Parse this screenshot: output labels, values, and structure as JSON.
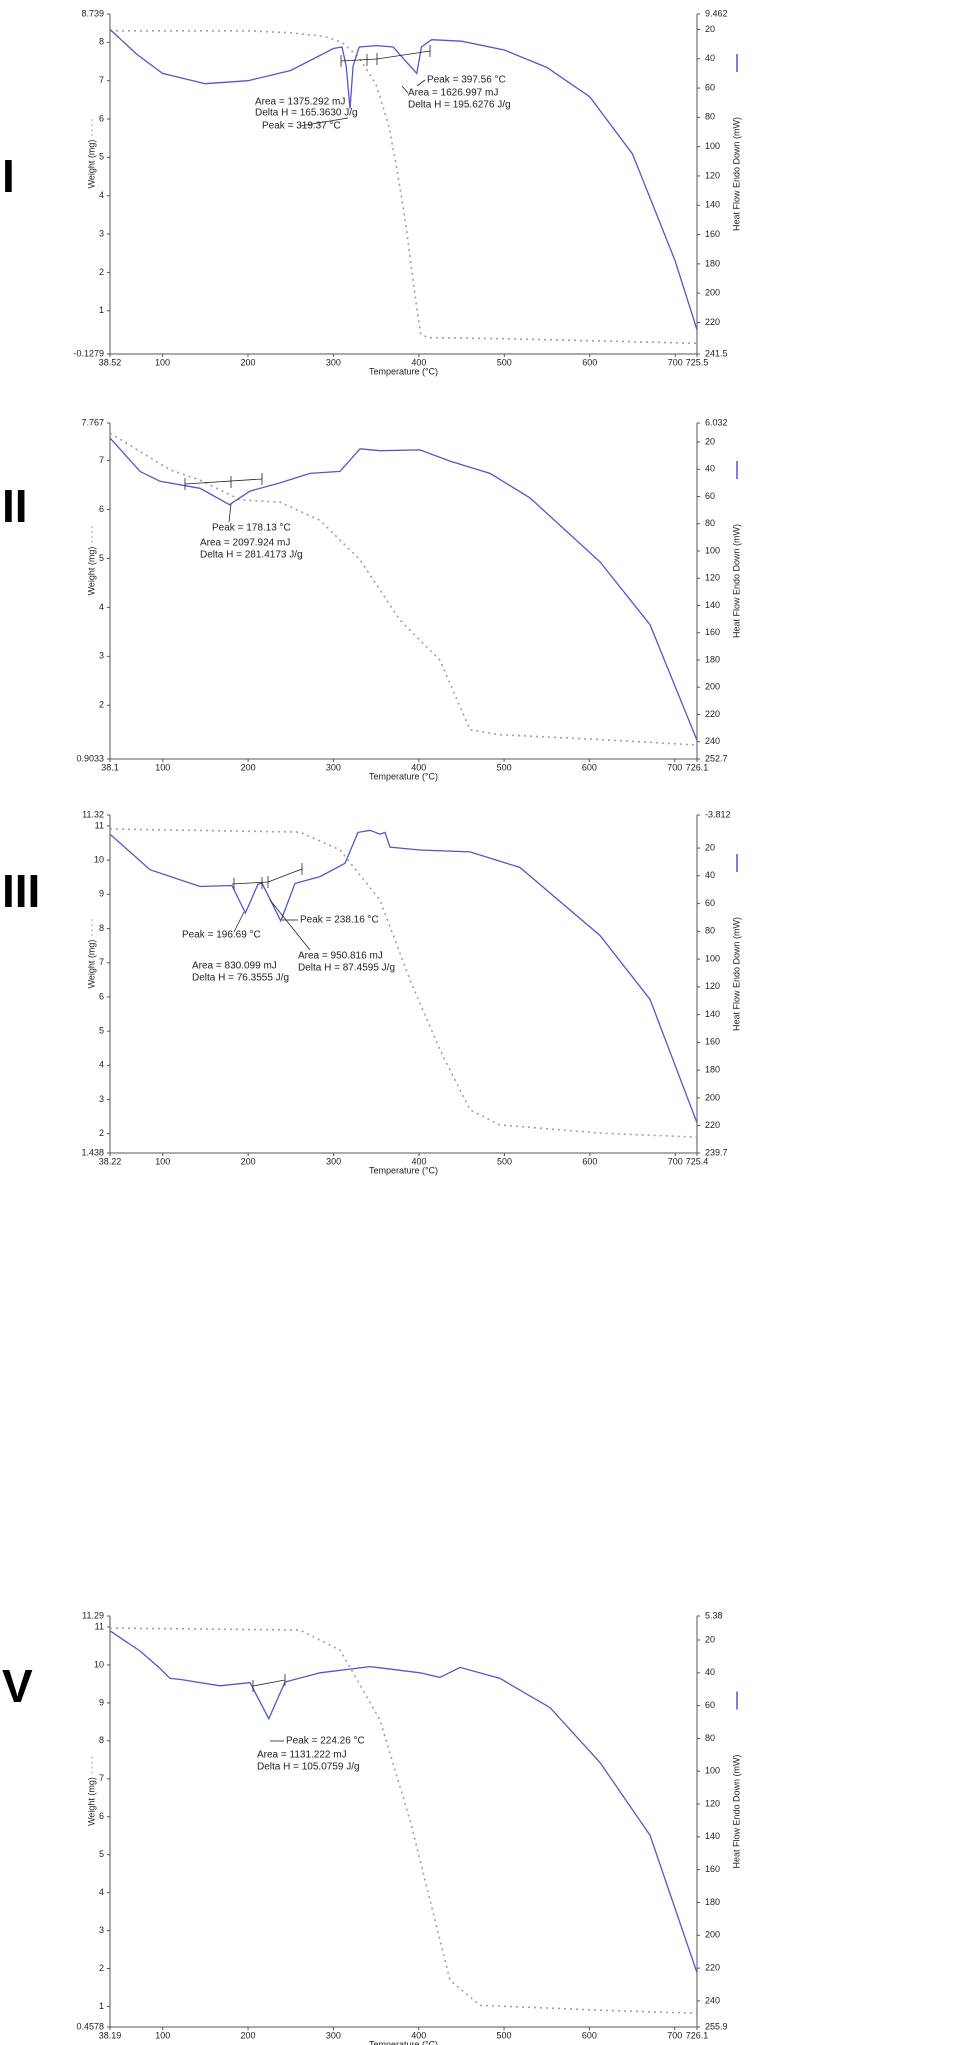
{
  "chart_data": [
    {
      "type": "line",
      "label": "I",
      "xlabel": "Temperature (°C)",
      "ylabel": "Weight (mg)",
      "y2label": "Heat Flow Endo Down (mW)",
      "xlim": [
        38.52,
        725.5
      ],
      "xticks": [
        38.52,
        100,
        200,
        300,
        400,
        500,
        600,
        700,
        725.5
      ],
      "ylim": [
        -0.1279,
        8.739
      ],
      "yticks": [
        -0.1279,
        1,
        2,
        3,
        4,
        5,
        6,
        7,
        8,
        8.739
      ],
      "y2lim": [
        241.5,
        9.462
      ],
      "y2ticks": [
        241.5,
        220,
        200,
        180,
        160,
        140,
        120,
        100,
        80,
        60,
        40,
        20,
        9.462
      ],
      "series": [
        {
          "color": "#a0a0a0",
          "dashed": true,
          "x": [
            38.52,
            100,
            200,
            250,
            290,
            310,
            330,
            350,
            365,
            375,
            385,
            392,
            398,
            402,
            410,
            500,
            600,
            725.5
          ],
          "values": [
            8.3,
            8.3,
            8.3,
            8.25,
            8.15,
            8.0,
            7.6,
            6.9,
            5.8,
            4.6,
            3.2,
            2.0,
            1.0,
            0.4,
            0.3,
            0.27,
            0.22,
            0.15
          ]
        },
        {
          "color": "#5555cc",
          "axis": "y2",
          "x": [
            38.52,
            70,
            100,
            150,
            200,
            250,
            300,
            310,
            315,
            319.37,
            323,
            330,
            350,
            370,
            385,
            397.56,
            403,
            415,
            450,
            500,
            550,
            600,
            650,
            700,
            725.5
          ],
          "values": [
            20,
            37,
            50,
            57,
            55,
            48,
            33,
            32,
            45,
            74,
            45,
            32,
            31,
            32,
            42,
            50,
            32,
            27,
            28,
            34,
            46,
            66,
            105,
            178,
            225
          ]
        }
      ],
      "annotations": [
        "Area = 1375.292 mJ",
        "Delta H = 165.3630 J/g",
        "Peak = 319.37 °C",
        "Peak = 397.56 °C",
        "Area = 1626.997 mJ",
        "Delta H = 195.6276 J/g"
      ]
    },
    {
      "type": "line",
      "label": "II",
      "xlabel": "Temperature (°C)",
      "ylabel": "Weight (mg)",
      "y2label": "Heat Flow Endo Down (mW)",
      "xlim": [
        38.1,
        726.1
      ],
      "xticks": [
        38.1,
        100,
        200,
        300,
        400,
        500,
        600,
        700,
        726.1
      ],
      "ylim": [
        0.9033,
        7.767
      ],
      "yticks": [
        0.9033,
        2,
        3,
        4,
        5,
        6,
        7,
        7.767
      ],
      "y2lim": [
        252.7,
        6.032
      ],
      "y2ticks": [
        252.7,
        240,
        220,
        200,
        180,
        160,
        140,
        120,
        100,
        80,
        60,
        40,
        20,
        6.032
      ],
      "series": [
        {
          "color": "#a0a0a0",
          "dashed": true,
          "x": [
            38.1,
            108.4,
            143.6,
            190.5,
            237.4,
            284.2,
            331.1,
            378,
            424.9,
            460,
            495.2,
            612.4,
            726.1
          ],
          "values": [
            7.56,
            6.81,
            6.6,
            6.2,
            6.15,
            5.78,
            4.97,
            3.74,
            2.92,
            1.5,
            1.4,
            1.3,
            1.19
          ]
        },
        {
          "color": "#5555cc",
          "axis": "y2",
          "x": [
            38.1,
            73.3,
            96.7,
            143.6,
            178.13,
            202.2,
            237.4,
            272.5,
            307.7,
            331.1,
            354.6,
            401.4,
            436.6,
            483.5,
            530.4,
            612.4,
            671,
            726.1
          ],
          "values": [
            17,
            41.6,
            48.8,
            54,
            66,
            56,
            50,
            43,
            41.6,
            25,
            26.4,
            25.8,
            34,
            43,
            61,
            108,
            154,
            239
          ]
        }
      ],
      "annotations": [
        "Peak = 178.13 °C",
        "Area = 2097.924 mJ",
        "Delta H = 281.4173 J/g"
      ]
    },
    {
      "type": "line",
      "label": "III",
      "xlabel": "Temperature (°C)",
      "ylabel": "Weight (mg)",
      "y2label": "Heat Flow Endo Down (mW)",
      "xlim": [
        38.22,
        725.4
      ],
      "xticks": [
        38.22,
        100,
        200,
        300,
        400,
        500,
        600,
        700,
        725.4
      ],
      "ylim": [
        1.438,
        11.32
      ],
      "yticks": [
        1.438,
        2,
        3,
        4,
        5,
        6,
        7,
        8,
        9,
        10,
        11,
        11.32
      ],
      "y2lim": [
        239.7,
        -3.812
      ],
      "y2ticks": [
        239.7,
        220,
        200,
        180,
        160,
        140,
        120,
        100,
        80,
        60,
        40,
        20,
        -3.812
      ],
      "series": [
        {
          "color": "#a0a0a0",
          "dashed": true,
          "x": [
            38.22,
            260.7,
            307.5,
            354.3,
            389.4,
            424.5,
            459.7,
            494.8,
            611.9,
            725.4
          ],
          "values": [
            10.91,
            10.82,
            10.3,
            8.83,
            6.5,
            4.45,
            2.7,
            2.26,
            2.02,
            1.9
          ]
        },
        {
          "color": "#5555cc",
          "axis": "y2",
          "x": [
            38.22,
            85.1,
            143.6,
            181,
            196.69,
            211.5,
            216.2,
            238.16,
            254.8,
            284.1,
            313.3,
            328.6,
            342.6,
            354.3,
            360.2,
            366,
            401.1,
            459.7,
            518.2,
            611.9,
            670.4,
            725.4
          ],
          "values": [
            10,
            35.6,
            47.7,
            47,
            66.8,
            46,
            45.3,
            72.5,
            45.5,
            40.6,
            31,
            8.7,
            7.2,
            10,
            8.7,
            19.3,
            21.4,
            22.8,
            34,
            83,
            129,
            218
          ]
        }
      ],
      "annotations": [
        "Peak = 196.69 °C",
        "Peak = 238.16 °C",
        "Area = 830.099 mJ",
        "Delta H = 76.3555 J/g",
        "Area = 950.816 mJ",
        "Delta H = 87.4595 J/g"
      ]
    },
    {
      "type": "line",
      "label": "V",
      "xlabel": "Temperature (°C)",
      "ylabel": "Weight (mg)",
      "y2label": "Heat Flow Endo Down (mW)",
      "xlim": [
        38.19,
        726.1
      ],
      "xticks": [
        38.19,
        100,
        200,
        300,
        400,
        500,
        600,
        700,
        726.1
      ],
      "ylim": [
        0.4578,
        11.29
      ],
      "yticks": [
        0.4578,
        1,
        2,
        3,
        4,
        5,
        6,
        7,
        8,
        9,
        10,
        11,
        11.29
      ],
      "y2lim": [
        255.9,
        5.38
      ],
      "y2ticks": [
        255.9,
        240,
        220,
        200,
        180,
        160,
        140,
        120,
        100,
        80,
        60,
        40,
        20,
        5.38
      ],
      "series": [
        {
          "color": "#a0a0a0",
          "dashed": true,
          "x": [
            38.19,
            260.8,
            307.7,
            354.6,
            389.8,
            413.2,
            436.6,
            471.8,
            612.4,
            726.1
          ],
          "values": [
            10.97,
            10.92,
            10.39,
            8.55,
            5.91,
            3.8,
            1.69,
            1.03,
            0.9,
            0.82
          ]
        },
        {
          "color": "#5555cc",
          "axis": "y2",
          "x": [
            38.19,
            73.3,
            96.8,
            108.5,
            120.2,
            167.1,
            202.3,
            224.26,
            243.3,
            284.3,
            342.9,
            401.5,
            424.9,
            448.4,
            495.2,
            553.8,
            612.4,
            671,
            726.1
          ],
          "values": [
            14.4,
            26.7,
            37.3,
            43.4,
            44,
            47.9,
            46,
            68,
            45.6,
            40,
            36.2,
            40,
            42.8,
            36.7,
            43.4,
            61.2,
            94.7,
            139,
            222.8
          ]
        }
      ],
      "annotations": [
        "Peak = 224.26 °C",
        "Area = 1131.222 mJ",
        "Delta H = 105.0759 J/g"
      ]
    }
  ]
}
